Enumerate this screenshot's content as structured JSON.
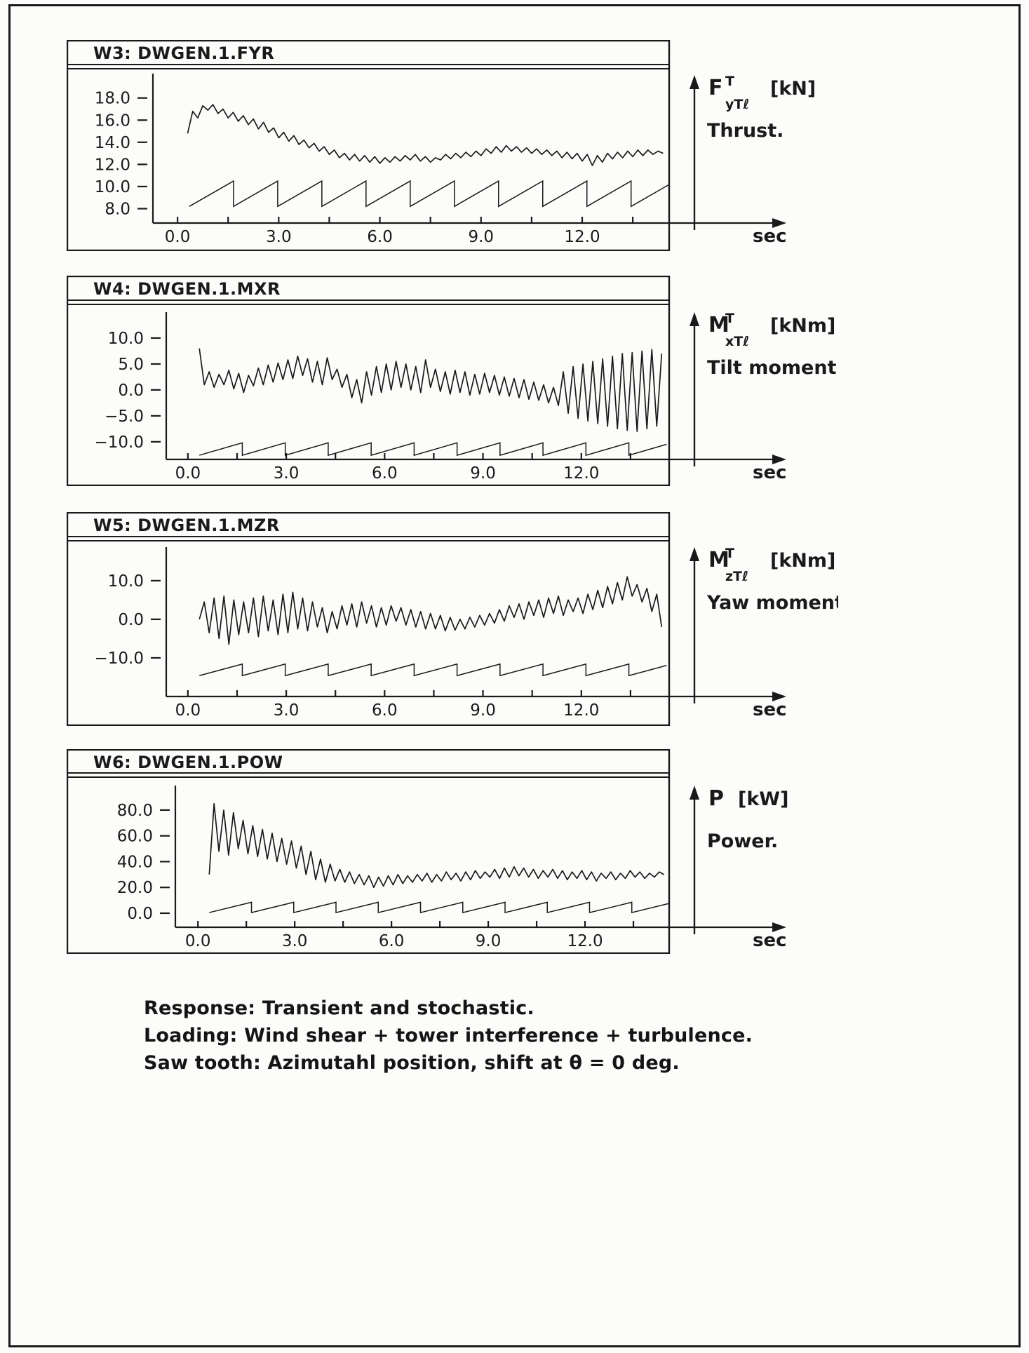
{
  "page": {
    "captions": [
      "Response: Transient and stochastic.",
      "Loading: Wind shear + tower interference + turbulence.",
      "Saw tooth: Azimutahl position, shift at θ = 0 deg."
    ]
  },
  "chart_data": [
    {
      "type": "line",
      "id": "w3",
      "title": "W3: DWGEN.1.FYR",
      "axis_label": {
        "symbol": "F",
        "sup": "T",
        "sub": "yTℓ",
        "unit": "[kN]",
        "desc": "Thrust."
      },
      "xlabel": "sec",
      "xlim": [
        -0.73,
        14.6
      ],
      "ylim": [
        6.7,
        20.2
      ],
      "x_ticks": [
        0.0,
        3.0,
        6.0,
        9.0,
        12.0
      ],
      "x_minor_step": 1.5,
      "y_ticks": [
        18.0,
        16.0,
        14.0,
        12.0,
        10.0,
        8.0
      ],
      "grid": false,
      "signal": {
        "name": "thrust response (transient + stochastic)",
        "t0": 0.3,
        "dt": 0.15,
        "values": [
          14.8,
          16.8,
          16.2,
          17.3,
          16.9,
          17.4,
          16.6,
          17.0,
          16.2,
          16.7,
          15.9,
          16.4,
          15.6,
          16.1,
          15.2,
          15.8,
          14.9,
          15.3,
          14.4,
          14.9,
          14.1,
          14.6,
          13.8,
          14.2,
          13.5,
          13.9,
          13.2,
          13.6,
          12.9,
          13.3,
          12.6,
          13.0,
          12.4,
          12.9,
          12.3,
          12.8,
          12.2,
          12.7,
          12.1,
          12.6,
          12.2,
          12.7,
          12.3,
          12.8,
          12.4,
          12.9,
          12.3,
          12.7,
          12.2,
          12.6,
          12.4,
          12.9,
          12.5,
          13.0,
          12.6,
          13.1,
          12.7,
          13.2,
          12.8,
          13.4,
          13.0,
          13.6,
          13.1,
          13.7,
          13.2,
          13.6,
          13.1,
          13.5,
          13.0,
          13.4,
          12.9,
          13.3,
          12.8,
          13.2,
          12.6,
          13.1,
          12.5,
          13.0,
          12.3,
          12.9,
          11.9,
          12.8,
          12.2,
          13.0,
          12.5,
          13.1,
          12.6,
          13.2,
          12.7,
          13.3,
          12.8,
          13.3,
          12.9,
          13.2,
          13.0
        ]
      },
      "sawtooth": {
        "name": "azimuthal position sawtooth",
        "t_start": 0.35,
        "t_end": 14.55,
        "period": 1.31,
        "y_min": 8.2,
        "y_max": 10.5
      }
    },
    {
      "type": "line",
      "id": "w4",
      "title": "W4: DWGEN.1.MXR",
      "axis_label": {
        "symbol": "M",
        "sup": "T",
        "sub": "xTℓ",
        "unit": "[kNm]",
        "desc": "Tilt moment."
      },
      "xlabel": "sec",
      "xlim": [
        -0.66,
        14.7
      ],
      "ylim": [
        -13.4,
        15.0
      ],
      "x_ticks": [
        0.0,
        3.0,
        6.0,
        9.0,
        12.0
      ],
      "x_minor_step": 1.5,
      "y_ticks": [
        10.0,
        5.0,
        0.0,
        -5.0,
        -10.0
      ],
      "grid": false,
      "signal": {
        "name": "tilt moment response (transient + stochastic)",
        "t0": 0.35,
        "dt": 0.15,
        "values": [
          8.0,
          1.0,
          3.5,
          0.5,
          3.0,
          1.0,
          3.8,
          0.2,
          3.2,
          -0.5,
          2.8,
          0.8,
          4.2,
          1.0,
          4.8,
          1.5,
          5.2,
          2.0,
          5.8,
          2.2,
          6.5,
          2.8,
          6.0,
          1.5,
          5.5,
          1.0,
          6.2,
          2.0,
          4.0,
          0.5,
          3.0,
          -1.5,
          2.0,
          -2.5,
          3.5,
          -1.0,
          4.5,
          -0.5,
          5.0,
          0.0,
          5.5,
          0.5,
          5.0,
          0.0,
          4.5,
          -0.5,
          5.8,
          0.5,
          4.0,
          -0.3,
          3.5,
          -0.8,
          3.8,
          -0.5,
          3.5,
          -1.0,
          3.0,
          -0.8,
          3.2,
          -0.5,
          2.8,
          -1.0,
          2.5,
          -1.2,
          2.2,
          -1.5,
          2.0,
          -1.8,
          1.5,
          -2.0,
          1.0,
          -2.5,
          0.5,
          -3.0,
          3.5,
          -4.5,
          4.5,
          -5.5,
          5.0,
          -6.0,
          5.5,
          -6.5,
          6.0,
          -7.0,
          6.5,
          -7.5,
          7.0,
          -7.8,
          7.2,
          -8.0,
          7.5,
          -7.5,
          7.8,
          -7.0,
          7.0
        ]
      },
      "sawtooth": {
        "name": "azimuthal position sawtooth",
        "t_start": 0.35,
        "t_end": 14.6,
        "period": 1.31,
        "y_min": -12.6,
        "y_max": -10.2
      }
    },
    {
      "type": "line",
      "id": "w5",
      "title": "W5: DWGEN.1.MZR",
      "axis_label": {
        "symbol": "M",
        "sup": "T",
        "sub": "zTℓ",
        "unit": "[kNm]",
        "desc": "Yaw moment."
      },
      "xlabel": "sec",
      "xlim": [
        -0.66,
        14.7
      ],
      "ylim": [
        -20.0,
        18.7
      ],
      "x_ticks": [
        0.0,
        3.0,
        6.0,
        9.0,
        12.0
      ],
      "x_minor_step": 1.5,
      "y_ticks": [
        10.0,
        0.0,
        -10.0
      ],
      "grid": false,
      "signal": {
        "name": "yaw moment response (transient + stochastic)",
        "t0": 0.35,
        "dt": 0.15,
        "values": [
          0.0,
          4.5,
          -3.5,
          5.5,
          -5.0,
          6.0,
          -6.5,
          5.0,
          -4.0,
          4.5,
          -3.5,
          5.5,
          -4.5,
          6.0,
          -3.0,
          5.0,
          -4.0,
          6.5,
          -3.5,
          7.0,
          -2.5,
          5.5,
          -3.0,
          4.5,
          -2.0,
          3.0,
          -3.5,
          2.0,
          -2.5,
          3.5,
          -1.5,
          4.0,
          -2.0,
          4.5,
          -1.0,
          3.5,
          -2.0,
          3.0,
          -1.5,
          3.5,
          -0.5,
          3.0,
          -1.5,
          2.5,
          -2.0,
          2.0,
          -2.5,
          1.5,
          -2.5,
          1.0,
          -3.0,
          0.5,
          -2.8,
          0.0,
          -2.5,
          0.5,
          -2.0,
          1.0,
          -1.5,
          1.5,
          -1.0,
          2.5,
          -0.5,
          3.5,
          0.5,
          4.0,
          0.0,
          4.5,
          1.0,
          5.0,
          0.5,
          5.5,
          1.5,
          6.0,
          1.0,
          5.0,
          2.0,
          5.5,
          1.5,
          6.5,
          2.5,
          7.5,
          3.0,
          8.5,
          4.0,
          9.5,
          5.0,
          11.0,
          6.0,
          9.0,
          4.5,
          8.0,
          2.0,
          6.5,
          -2.0
        ]
      },
      "sawtooth": {
        "name": "azimuthal position sawtooth",
        "t_start": 0.35,
        "t_end": 14.6,
        "period": 1.31,
        "y_min": -14.6,
        "y_max": -11.6
      }
    },
    {
      "type": "line",
      "id": "w6",
      "title": "W6: DWGEN.1.POW",
      "axis_label": {
        "symbol": "P",
        "sup": "",
        "sub": "",
        "unit": "[kW]",
        "desc": "Power."
      },
      "xlabel": "sec",
      "xlim": [
        -0.7,
        14.63
      ],
      "ylim": [
        -10.9,
        99.0
      ],
      "x_ticks": [
        0.0,
        3.0,
        6.0,
        9.0,
        12.0
      ],
      "x_minor_step": 1.5,
      "y_ticks": [
        80.0,
        60.0,
        40.0,
        20.0,
        0.0
      ],
      "grid": false,
      "signal": {
        "name": "power response (transient + stochastic)",
        "t0": 0.35,
        "dt": 0.15,
        "values": [
          30,
          85,
          48,
          80,
          45,
          78,
          50,
          72,
          46,
          68,
          44,
          65,
          42,
          62,
          40,
          58,
          38,
          56,
          35,
          52,
          30,
          48,
          26,
          42,
          24,
          38,
          25,
          34,
          24,
          32,
          23,
          30,
          22,
          29,
          20,
          28,
          21,
          29,
          22,
          30,
          23,
          29,
          24,
          30,
          25,
          31,
          24,
          30,
          25,
          32,
          26,
          31,
          25,
          32,
          26,
          33,
          27,
          32,
          28,
          34,
          27,
          35,
          28,
          36,
          29,
          35,
          28,
          34,
          27,
          33,
          28,
          34,
          27,
          33,
          26,
          32,
          27,
          33,
          26,
          32,
          25,
          31,
          27,
          32,
          26,
          31,
          27,
          33,
          28,
          32,
          27,
          31,
          28,
          32,
          30
        ]
      },
      "sawtooth": {
        "name": "azimuthal position sawtooth",
        "t_start": 0.35,
        "t_end": 14.6,
        "period": 1.31,
        "y_min": 0.5,
        "y_max": 8.5
      }
    }
  ]
}
